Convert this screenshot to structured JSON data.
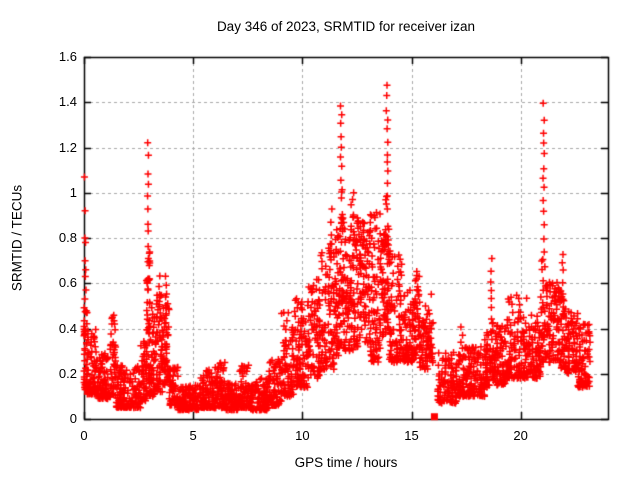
{
  "window": {
    "background": "#ffffff"
  },
  "chart_data": {
    "type": "scatter",
    "title": "Day 346 of 2023, SRMTID for receiver izan",
    "xlabel": "GPS time / hours",
    "ylabel": "SRMTID / TECUs",
    "xlim": [
      0,
      24
    ],
    "ylim": [
      0,
      1.6
    ],
    "xticks": [
      0,
      5,
      10,
      15,
      20
    ],
    "xtick_labels": [
      "0",
      "5",
      "10",
      "15",
      "20"
    ],
    "yticks": [
      0,
      0.2,
      0.4,
      0.6,
      0.8,
      1.0,
      1.2,
      1.4,
      1.6
    ],
    "ytick_labels": [
      "0",
      "0.2",
      "0.4",
      "0.6",
      "0.8",
      "1",
      "1.2",
      "1.4",
      "1.6"
    ],
    "grid": {
      "show": true,
      "color": "#a8a8a8",
      "dash": [
        3,
        3
      ]
    },
    "border_color": "#000000",
    "marker": {
      "shape": "plus",
      "size": 7,
      "color": "#ff0000",
      "line_width": 1.5
    },
    "gap_marker": {
      "x": 16.05,
      "y": 0.01,
      "shape": "filled-square",
      "size": 7,
      "color": "#ff0000"
    },
    "seed": 1346,
    "scatter_model": {
      "note": "Dense scatter of SRMTID vs GPS time. segments=[x0,x1,ymin,ymax,count,skew] clusters of points concentrated toward ymin; columns=[x,xjitter,y0,y1,count] vertical spike trails; extra_points=[x,y] individual outliers.",
      "segments": [
        [
          0.0,
          0.15,
          0.13,
          0.5,
          45,
          1.6
        ],
        [
          0.15,
          0.6,
          0.11,
          0.4,
          70,
          2.2
        ],
        [
          0.6,
          1.2,
          0.09,
          0.3,
          85,
          2.0
        ],
        [
          1.2,
          1.45,
          0.1,
          0.46,
          40,
          2.0
        ],
        [
          1.45,
          2.6,
          0.05,
          0.24,
          150,
          1.8
        ],
        [
          2.6,
          2.87,
          0.08,
          0.35,
          40,
          1.7
        ],
        [
          2.86,
          3.02,
          0.1,
          0.74,
          50,
          1.3
        ],
        [
          3.0,
          3.3,
          0.1,
          0.5,
          50,
          2.0
        ],
        [
          3.3,
          3.6,
          0.12,
          0.55,
          55,
          1.8
        ],
        [
          3.6,
          3.9,
          0.15,
          0.58,
          60,
          1.6
        ],
        [
          3.9,
          4.3,
          0.06,
          0.24,
          55,
          1.8
        ],
        [
          4.3,
          5.35,
          0.04,
          0.15,
          130,
          1.5
        ],
        [
          5.35,
          6.0,
          0.05,
          0.22,
          100,
          2.2
        ],
        [
          6.0,
          6.5,
          0.05,
          0.26,
          70,
          2.0
        ],
        [
          6.5,
          7.05,
          0.04,
          0.16,
          75,
          1.6
        ],
        [
          7.05,
          7.6,
          0.05,
          0.24,
          75,
          2.0
        ],
        [
          7.6,
          8.45,
          0.04,
          0.18,
          110,
          1.8
        ],
        [
          8.45,
          9.05,
          0.06,
          0.28,
          80,
          1.8
        ],
        [
          9.05,
          9.6,
          0.1,
          0.48,
          75,
          1.8
        ],
        [
          9.6,
          10.25,
          0.14,
          0.55,
          90,
          1.7
        ],
        [
          10.25,
          10.85,
          0.18,
          0.62,
          85,
          1.6
        ],
        [
          10.85,
          11.45,
          0.22,
          0.78,
          85,
          1.5
        ],
        [
          11.45,
          11.68,
          0.28,
          0.85,
          40,
          1.4
        ],
        [
          11.68,
          11.88,
          0.3,
          1.02,
          45,
          1.3
        ],
        [
          11.88,
          12.18,
          0.3,
          0.88,
          50,
          1.4
        ],
        [
          12.18,
          12.58,
          0.3,
          0.97,
          70,
          1.2
        ],
        [
          12.58,
          13.12,
          0.33,
          0.88,
          90,
          1.3
        ],
        [
          13.12,
          13.58,
          0.25,
          0.92,
          75,
          1.4
        ],
        [
          13.58,
          13.82,
          0.35,
          0.85,
          45,
          1.3
        ],
        [
          13.82,
          13.97,
          0.4,
          1.05,
          35,
          1.2
        ],
        [
          13.97,
          14.55,
          0.25,
          0.75,
          85,
          1.5
        ],
        [
          14.55,
          15.12,
          0.25,
          0.57,
          80,
          1.6
        ],
        [
          15.12,
          15.38,
          0.27,
          0.66,
          40,
          1.5
        ],
        [
          15.38,
          15.8,
          0.22,
          0.5,
          55,
          1.6
        ],
        [
          15.8,
          16.0,
          0.25,
          0.6,
          25,
          1.3
        ],
        [
          16.2,
          17.05,
          0.07,
          0.3,
          100,
          1.8
        ],
        [
          17.05,
          18.35,
          0.1,
          0.32,
          170,
          2.0
        ],
        [
          18.35,
          18.58,
          0.14,
          0.4,
          35,
          1.6
        ],
        [
          18.58,
          18.75,
          0.18,
          0.45,
          25,
          1.4
        ],
        [
          18.75,
          19.35,
          0.15,
          0.42,
          80,
          1.7
        ],
        [
          19.35,
          20.3,
          0.18,
          0.55,
          130,
          1.8
        ],
        [
          20.3,
          20.92,
          0.18,
          0.46,
          85,
          1.7
        ],
        [
          20.92,
          21.22,
          0.25,
          0.7,
          45,
          1.4
        ],
        [
          21.22,
          21.85,
          0.25,
          0.62,
          85,
          1.5
        ],
        [
          21.85,
          22.1,
          0.22,
          0.55,
          40,
          1.5
        ],
        [
          22.1,
          22.62,
          0.2,
          0.48,
          70,
          1.6
        ],
        [
          22.62,
          23.18,
          0.14,
          0.42,
          85,
          1.5
        ]
      ],
      "columns": [
        [
          2.93,
          0.03,
          0.74,
          1.25,
          9
        ],
        [
          3.45,
          0.03,
          0.5,
          0.66,
          4
        ],
        [
          3.76,
          0.03,
          0.5,
          0.65,
          4
        ],
        [
          11.33,
          0.03,
          0.7,
          0.95,
          5
        ],
        [
          11.77,
          0.04,
          1.0,
          1.43,
          9
        ],
        [
          13.88,
          0.04,
          1.02,
          1.5,
          10
        ],
        [
          15.25,
          0.03,
          0.55,
          0.7,
          3
        ],
        [
          17.3,
          0.04,
          0.3,
          0.44,
          4
        ],
        [
          18.66,
          0.03,
          0.33,
          0.74,
          9
        ],
        [
          21.05,
          0.035,
          0.68,
          1.42,
          14
        ],
        [
          21.93,
          0.03,
          0.55,
          0.77,
          5
        ]
      ],
      "extra_points": [
        [
          0.02,
          1.07
        ],
        [
          0.05,
          0.92
        ],
        [
          0.04,
          0.8
        ],
        [
          0.07,
          0.78
        ],
        [
          0.05,
          0.7
        ],
        [
          0.08,
          0.66
        ],
        [
          0.06,
          0.63
        ],
        [
          0.09,
          0.57
        ],
        [
          0.04,
          0.53
        ],
        [
          0.12,
          0.47
        ],
        [
          1.3,
          0.45
        ],
        [
          1.28,
          0.42
        ],
        [
          12.35,
          1.0
        ],
        [
          12.3,
          0.97
        ]
      ]
    }
  }
}
